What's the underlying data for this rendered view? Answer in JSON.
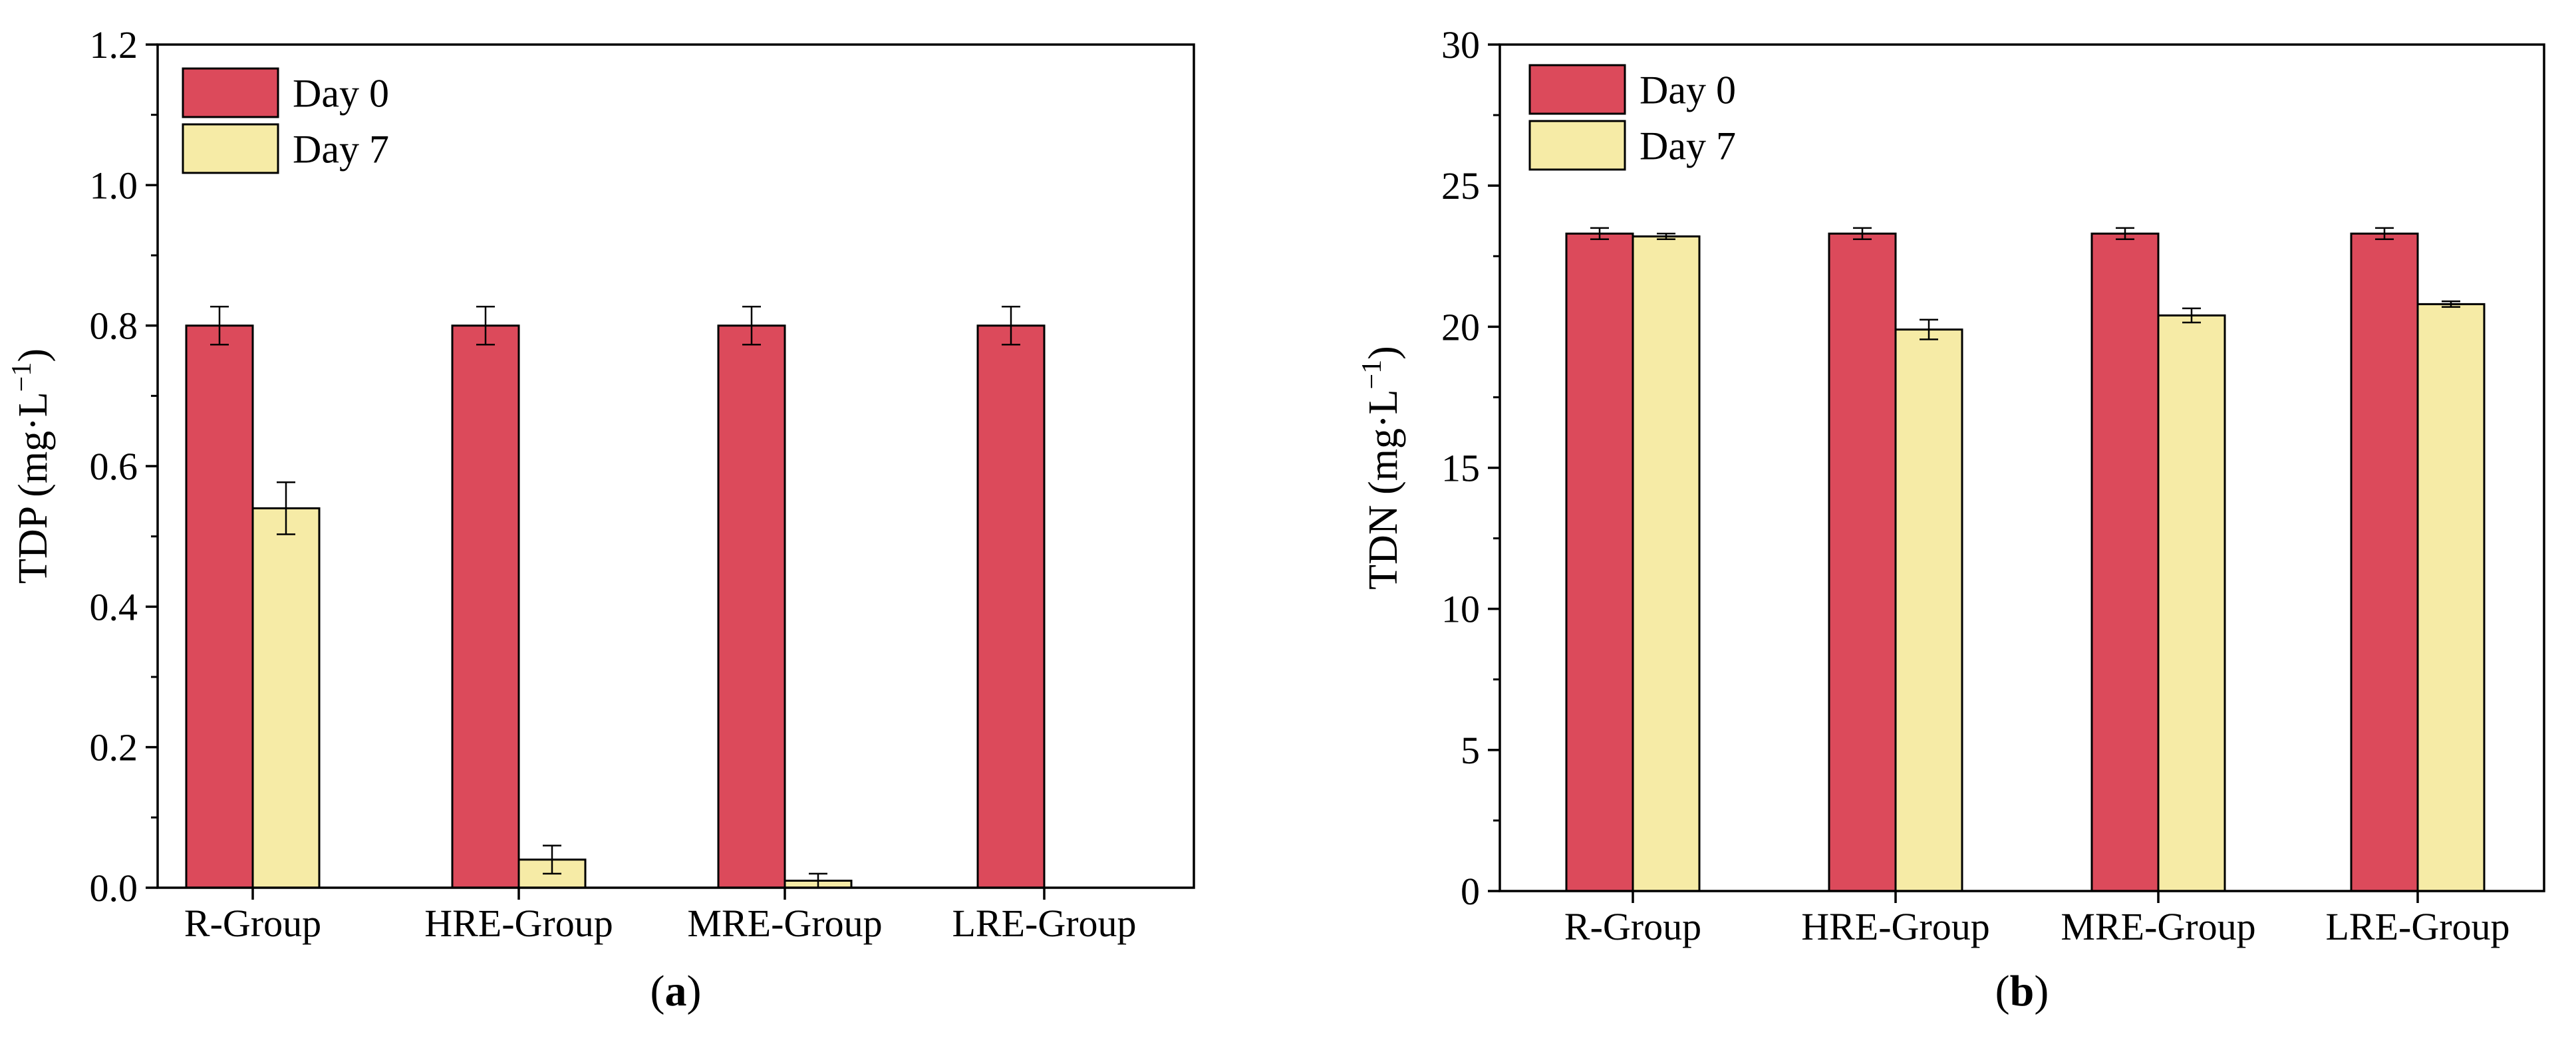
{
  "figure": {
    "colors": {
      "day0": "#DC4A5B",
      "day7": "#F6EBA6",
      "axis": "#000000",
      "background": "#ffffff"
    }
  },
  "chart_data": [
    {
      "type": "bar",
      "panel_label": "(a)",
      "panel_letter": "a",
      "ylabel": "TDP (mg·L⁻¹)",
      "ylabel_main": "TDP (mg·L",
      "ylabel_sup": "−1",
      "ylabel_close": ")",
      "ylim": [
        0,
        1.2
      ],
      "yticks": [
        0,
        0.2,
        0.4,
        0.6,
        0.8,
        1.0,
        1.2
      ],
      "ytick_labels": [
        "0.0",
        "0.2",
        "0.4",
        "0.6",
        "0.8",
        "1.0",
        "1.2"
      ],
      "categories": [
        "R-Group",
        "HRE-Group",
        "MRE-Group",
        "LRE-Group"
      ],
      "legend": {
        "position": "top-left"
      },
      "series": [
        {
          "name": "Day 0",
          "color": "#DC4A5B",
          "values": [
            0.8,
            0.8,
            0.8,
            0.8
          ],
          "errors": [
            0.027,
            0.027,
            0.027,
            0.027
          ]
        },
        {
          "name": "Day 7",
          "color": "#F6EBA6",
          "values": [
            0.54,
            0.04,
            0.01,
            0.0
          ],
          "errors": [
            0.037,
            0.02,
            0.01,
            0.0
          ]
        }
      ]
    },
    {
      "type": "bar",
      "panel_label": "(b)",
      "panel_letter": "b",
      "ylabel": "TDN (mg·L⁻¹)",
      "ylabel_main": "TDN (mg·L",
      "ylabel_sup": "−1",
      "ylabel_close": ")",
      "ylim": [
        0,
        30
      ],
      "yticks": [
        0,
        5,
        10,
        15,
        20,
        25,
        30
      ],
      "ytick_labels": [
        "0",
        "5",
        "10",
        "15",
        "20",
        "25",
        "30"
      ],
      "categories": [
        "R-Group",
        "HRE-Group",
        "MRE-Group",
        "LRE-Group"
      ],
      "legend": {
        "position": "top-left"
      },
      "series": [
        {
          "name": "Day 0",
          "color": "#DC4A5B",
          "values": [
            23.3,
            23.3,
            23.3,
            23.3
          ],
          "errors": [
            0.2,
            0.2,
            0.2,
            0.2
          ]
        },
        {
          "name": "Day 7",
          "color": "#F6EBA6",
          "values": [
            23.2,
            19.9,
            20.4,
            20.8
          ],
          "errors": [
            0.1,
            0.35,
            0.25,
            0.1
          ]
        }
      ]
    }
  ]
}
